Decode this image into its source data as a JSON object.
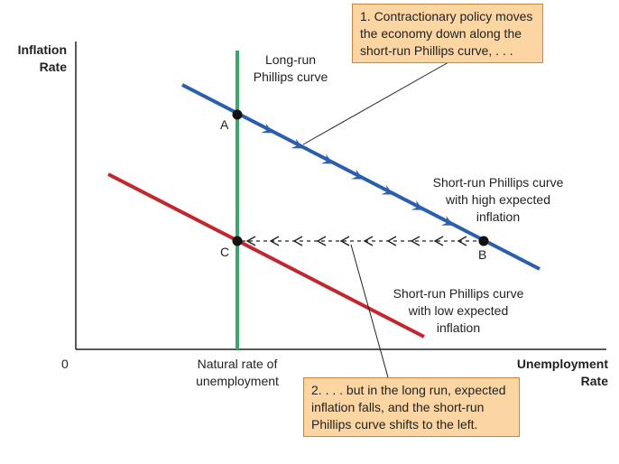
{
  "axes": {
    "y_title": "Inflation\nRate",
    "x_title": "Unemployment\nRate",
    "origin": "0",
    "x_tick": "Natural rate of\nunemployment"
  },
  "curves": {
    "lrpc": "Long-run\nPhillips curve",
    "srpc_high": "Short-run Phillips curve\nwith high expected\ninflation",
    "srpc_low": "Short-run Phillips curve\nwith low expected\ninflation"
  },
  "points": {
    "a": "A",
    "b": "B",
    "c": "C"
  },
  "annotations": {
    "box1": "1. Contractionary policy moves\nthe economy down along the\nshort-run Phillips curve, . . .",
    "box2": "2. . . . but in the long run, expected\ninflation falls, and the short-run\nPhillips curve shifts to the left."
  },
  "colors": {
    "lrpc": "#3aa86b",
    "srpc_high": "#2b5fae",
    "srpc_low": "#c4262e",
    "axis": "#222222",
    "box_fill": "#fbd6a2",
    "box_border": "#c8873a"
  }
}
